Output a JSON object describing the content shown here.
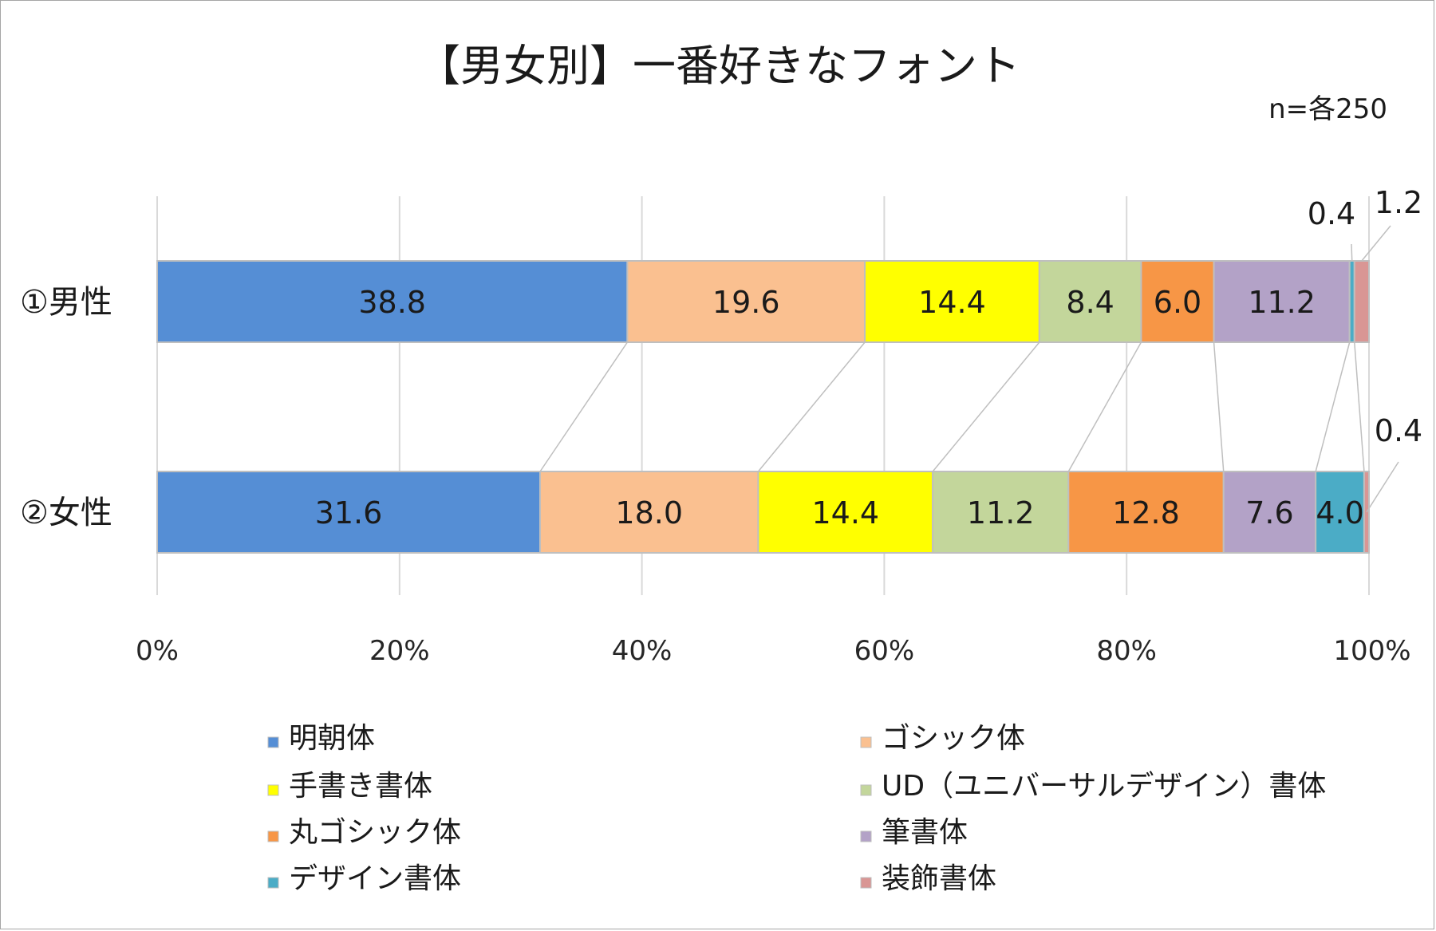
{
  "chart_data": {
    "type": "bar",
    "orientation": "horizontal",
    "stacked": "percent",
    "title": "【男女別】一番好きなフォント",
    "note": "n=各250",
    "categories": [
      "①男性",
      "②女性"
    ],
    "xlim": [
      0,
      100
    ],
    "ticks": [
      "0%",
      "20%",
      "40%",
      "60%",
      "80%",
      "100%"
    ],
    "grid": true,
    "legend_position": "bottom",
    "series": [
      {
        "name": "明朝体",
        "color": "#558ed5",
        "values": [
          38.8,
          31.6
        ],
        "labels": [
          "38.8",
          "31.6"
        ]
      },
      {
        "name": "ゴシック体",
        "color": "#fac090",
        "values": [
          19.6,
          18.0
        ],
        "labels": [
          "19.6",
          "18.0"
        ]
      },
      {
        "name": "手書き書体",
        "color": "#ffff00",
        "values": [
          14.4,
          14.4
        ],
        "labels": [
          "14.4",
          "14.4"
        ]
      },
      {
        "name": "UD（ユニバーサルデザイン）書体",
        "color": "#c3d69b",
        "values": [
          8.4,
          11.2
        ],
        "labels": [
          "8.4",
          "11.2"
        ]
      },
      {
        "name": "丸ゴシック体",
        "color": "#f79646",
        "values": [
          6.0,
          12.8
        ],
        "labels": [
          "6.0",
          "12.8"
        ]
      },
      {
        "name": "筆書体",
        "color": "#b3a2c7",
        "values": [
          11.2,
          7.6
        ],
        "labels": [
          "11.2",
          "7.6"
        ]
      },
      {
        "name": "デザイン書体",
        "color": "#4bacc6",
        "values": [
          0.4,
          4.0
        ],
        "labels": [
          "0.4",
          "4.0"
        ]
      },
      {
        "name": "装飾書体",
        "color": "#d99694",
        "values": [
          1.2,
          0.4
        ],
        "labels": [
          "1.2",
          "0.4"
        ]
      }
    ]
  }
}
